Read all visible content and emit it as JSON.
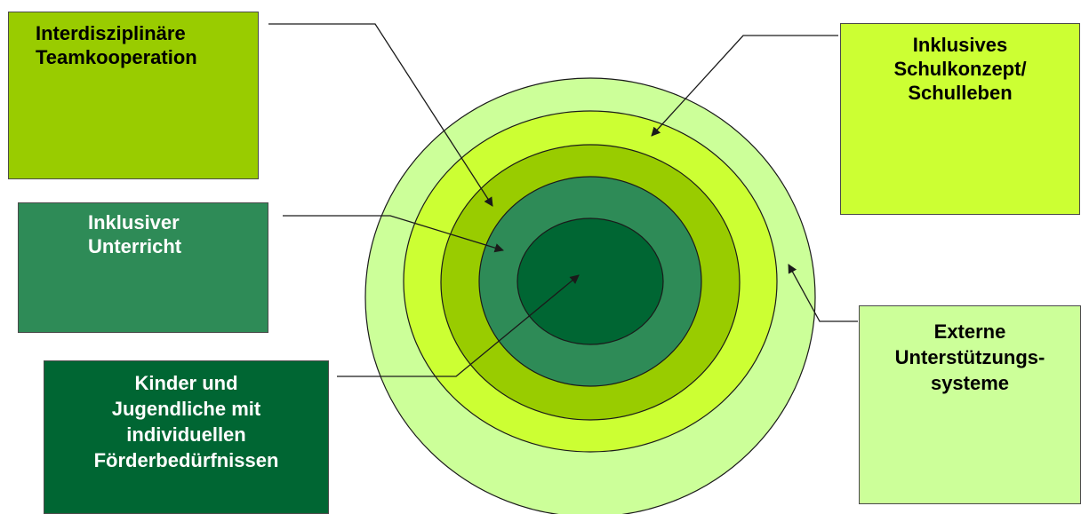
{
  "boxes": {
    "team": {
      "label": "Interdisziplinäre\nTeamkooperation",
      "color": "#99cc00",
      "text_color": "#000000"
    },
    "schul": {
      "label": "Inklusives\nSchulkonzept/\nSchulleben",
      "color": "#ccff33",
      "text_color": "#000000"
    },
    "unterricht": {
      "label": "Inklusiver\nUnterricht",
      "color": "#2e8b57",
      "text_color": "#ffffff"
    },
    "kinder": {
      "label": "Kinder und\nJugendliche  mit\nindividuellen\nFörderbedürfnissen",
      "color": "#006633",
      "text_color": "#ffffff"
    },
    "extern": {
      "label": "Externe\nUnterstützungs-\nsysteme",
      "color": "#ccff99",
      "text_color": "#000000"
    }
  },
  "rings": {
    "outer_color": "#ccff99",
    "second_color": "#ccff33",
    "third_color": "#99cc00",
    "fourth_color": "#2e8b57",
    "core_color": "#006633",
    "outline_color": "#1a1a1a"
  },
  "arrow_color": "#1a1a1a"
}
